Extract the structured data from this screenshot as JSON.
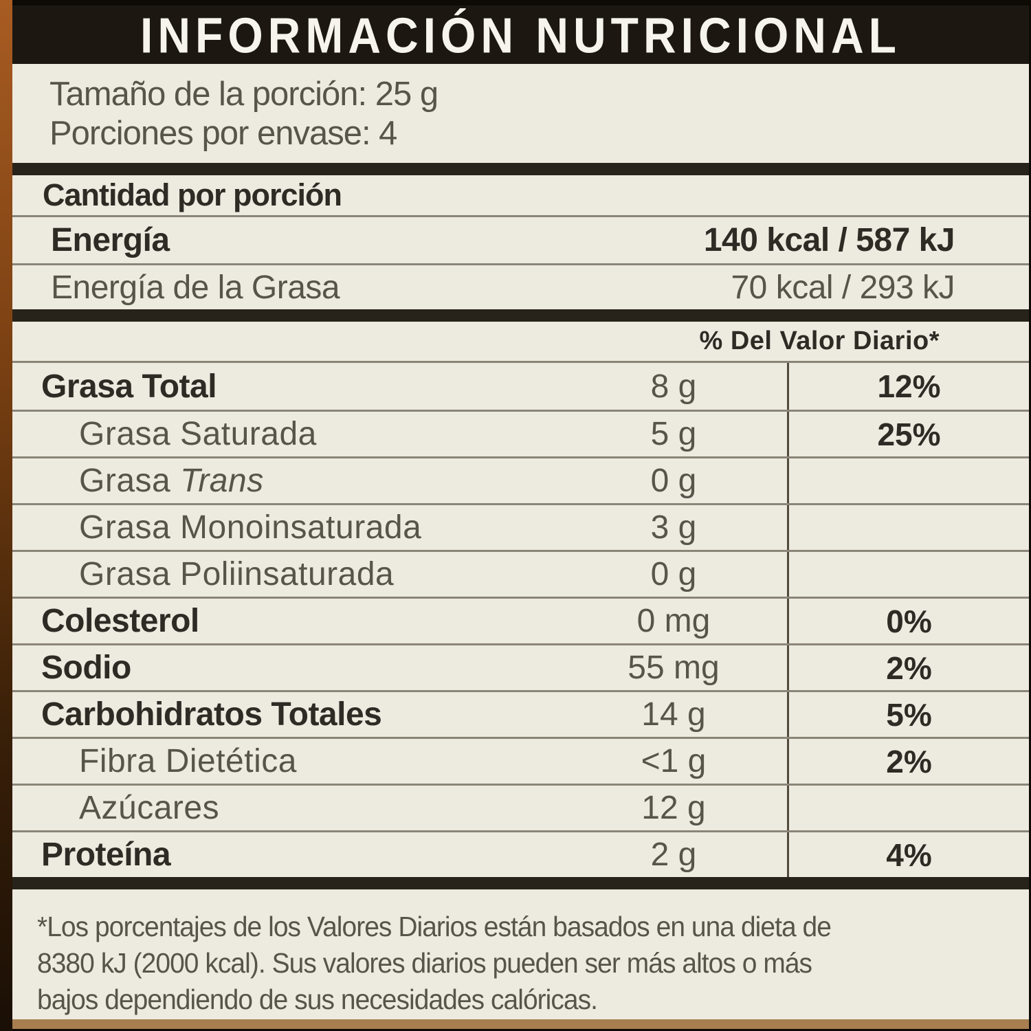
{
  "colors": {
    "label_bg": "#edeae0",
    "header_bg": "#1c1711",
    "header_text": "#f6f4ed",
    "bold_text": "#2d2b24",
    "regular_text": "#57544a",
    "thin_line": "#8a8577",
    "thick_bar": "#28231a",
    "divider": "#4f4a3c"
  },
  "header": {
    "title": "INFORMACIÓN NUTRICIONAL"
  },
  "serving": {
    "size_line": "Tamaño de la porción: 25 g",
    "per_container_line": "Porciones por envase: 4"
  },
  "sections": {
    "amount_per_serving": "Cantidad por porción",
    "dv_header": "% Del Valor Diario*"
  },
  "energy": [
    {
      "name": "Energía",
      "value": "140 kcal / 587 kJ"
    },
    {
      "name": "Energía de la Grasa",
      "value": "70 kcal / 293 kJ"
    }
  ],
  "nutrients": [
    {
      "name": "Grasa Total",
      "amount": "8 g",
      "dv": "12%"
    },
    {
      "name": "Grasa Saturada",
      "amount": "5 g",
      "dv": "25%"
    },
    {
      "name_prefix": "Grasa",
      "name_italic": "Trans",
      "amount": "0 g",
      "dv": ""
    },
    {
      "name": "Grasa Monoinsaturada",
      "amount": "3 g",
      "dv": ""
    },
    {
      "name": "Grasa Poliinsaturada",
      "amount": "0 g",
      "dv": ""
    },
    {
      "name": "Colesterol",
      "amount": "0 mg",
      "dv": "0%"
    },
    {
      "name": "Sodio",
      "amount": "55 mg",
      "dv": "2%"
    },
    {
      "name": "Carbohidratos Totales",
      "amount": "14 g",
      "dv": "5%"
    },
    {
      "name": "Fibra Dietética",
      "amount": "<1 g",
      "dv": "2%"
    },
    {
      "name": "Azúcares",
      "amount": "12 g",
      "dv": ""
    },
    {
      "name": "Proteína",
      "amount": "2 g",
      "dv": "4%"
    }
  ],
  "footnote": {
    "lines": [
      "*Los porcentajes de los Valores Diarios están basados en una dieta de",
      "8380 kJ (2000 kcal). Sus valores diarios pueden ser más altos o más",
      "bajos dependiendo de sus necesidades calóricas."
    ]
  }
}
